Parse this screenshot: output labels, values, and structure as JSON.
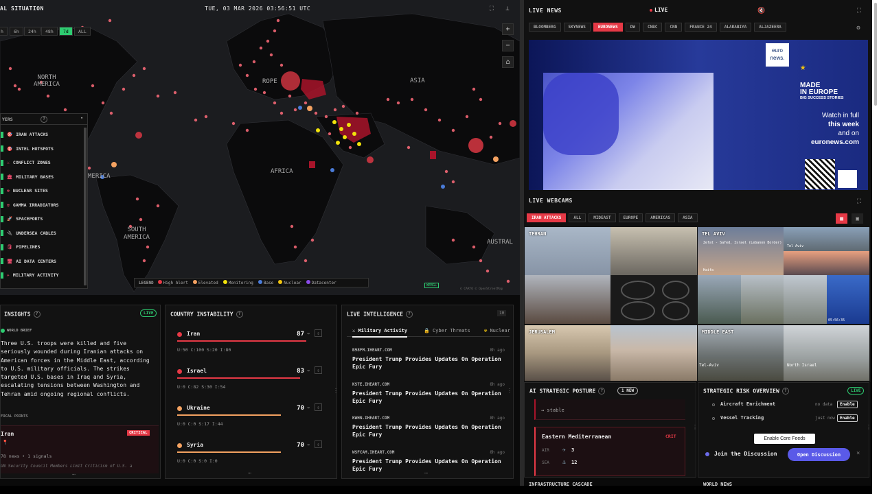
{
  "header": {
    "title": "AL SITUATION",
    "datetime": "TUE, 03 MAR 2026 03:56:51 UTC"
  },
  "time_filters": [
    "h",
    "6h",
    "24h",
    "48h",
    "7d",
    "ALL"
  ],
  "map": {
    "region_labels": [
      "NORTH AMERICA",
      "ROPE",
      "ASIA",
      "MERICA",
      "AFRICA",
      "SOUTH AMERICA",
      "AUSTRAL"
    ],
    "zoom_in": "+",
    "zoom_out": "−",
    "webgl": "WEBGL",
    "attribution": "© CARTO © OpenStreetMap"
  },
  "layers": {
    "title": "YERS",
    "help": "?",
    "items": [
      "IRAN ATTACKS",
      "INTEL HOTSPOTS",
      "CONFLICT ZONES",
      "MILITARY BASES",
      "NUCLEAR SITES",
      "GAMMA IRRADIATORS",
      "SPACEPORTS",
      "UNDERSEA CABLES",
      "PIPELINES",
      "AI DATA CENTERS",
      "MILITARY ACTIVITY"
    ]
  },
  "legend": {
    "title": "LEGEND",
    "items": [
      {
        "label": "High Alert",
        "color": "#e63946"
      },
      {
        "label": "Elevated",
        "color": "#f4a261"
      },
      {
        "label": "Monitoring",
        "color": "#f1e20b"
      },
      {
        "label": "Base",
        "color": "#4a7bd8"
      },
      {
        "label": "Nuclear",
        "color": "#f1c40f"
      },
      {
        "label": "Datacenter",
        "color": "#8a4be8"
      }
    ]
  },
  "insights": {
    "title": "INSIGHTS",
    "live": "LIVE",
    "brief_label": "WORLD BRIEF",
    "brief": "Three U.S. troops were killed and five seriously wounded during Iranian attacks on American forces in the Middle East, according to U.S. military officials. The strikes targeted U.S. bases in Iraq and Syria, escalating tensions between Washington and Tehran amid ongoing regional conflicts.",
    "focal_label": "FOCAL POINTS",
    "focal_name": "Iran",
    "focal_badge": "CRITICAL",
    "focal_meta": "78 news • 1 signals",
    "focal_sub": "UN Security Council Members Limit Criticism of U.S. a"
  },
  "instability": {
    "title": "COUNTRY INSTABILITY",
    "countries": [
      {
        "name": "Iran",
        "score": "87",
        "stats": "U:50  C:100  S:20  I:80",
        "color": "#e63946",
        "level": 0.87
      },
      {
        "name": "Israel",
        "score": "83",
        "stats": "U:0  C:82  S:30  I:54",
        "color": "#e63946",
        "level": 0.83
      },
      {
        "name": "Ukraine",
        "score": "70",
        "stats": "U:0  C:0  S:17  I:44",
        "color": "#f4a261",
        "level": 0.7
      },
      {
        "name": "Syria",
        "score": "70",
        "stats": "U:0  C:0  S:0  I:0",
        "color": "#f4a261",
        "level": 0.7
      }
    ]
  },
  "intel": {
    "title": "LIVE INTELLIGENCE",
    "count": "10",
    "tabs": [
      "Military Activity",
      "Cyber Threats",
      "Nuclear"
    ],
    "items": [
      {
        "src": "B98FM.IHEART.COM",
        "time": "8h ago",
        "headline": "President Trump Provides Updates On Operation Epic Fury"
      },
      {
        "src": "KSTE.IHEART.COM",
        "time": "8h ago",
        "headline": "President Trump Provides Updates On Operation Epic Fury"
      },
      {
        "src": "KWHN.IHEART.COM",
        "time": "8h ago",
        "headline": "President Trump Provides Updates On Operation Epic Fury"
      },
      {
        "src": "WSFCAM.IHEART.COM",
        "time": "8h ago",
        "headline": "President Trump Provides Updates On Operation Epic Fury"
      }
    ]
  },
  "live_news": {
    "title": "LIVE NEWS",
    "live": "LIVE",
    "channels": [
      "BLOOMBERG",
      "SKYNEWS",
      "EURONEWS",
      "DW",
      "CNBC",
      "CNN",
      "FRANCE 24",
      "ALARABIYA",
      "ALJAZEERA"
    ],
    "active": "EURONEWS",
    "video": {
      "logo_top": "euro",
      "logo_bottom": "news.",
      "made": "MADE",
      "in_europe": "IN EUROPE",
      "big": "BIG SUCCESS STORIES",
      "watch1": "Watch in full",
      "watch2": "this week",
      "watch3": "and on",
      "site": "euronews.com"
    }
  },
  "webcams": {
    "title": "LIVE WEBCAMS",
    "tabs": [
      "IRAN ATTACKS",
      "ALL",
      "MIDEAST",
      "EUROPE",
      "AMERICAS",
      "ASIA"
    ],
    "labels": [
      "TEHRAN",
      "TEL AVIV",
      "JERUSALEM",
      "MIDDLE EAST"
    ],
    "overlay_texts": [
      "Zefat - Safed, Israel (Lebanon Border)",
      "Tel Aviv",
      "Haifa",
      "North Israel",
      "Tel-Aviv"
    ],
    "clock": "05:56:35"
  },
  "posture": {
    "title": "AI STRATEGIC POSTURE",
    "badge": "1 NEW",
    "stable": "→ stable",
    "region": "Eastern Mediterranean",
    "crit": "CRIT",
    "air_label": "AIR",
    "air_val": "3",
    "sea_label": "SEA",
    "sea_val": "12"
  },
  "risk": {
    "title": "STRATEGIC RISK OVERVIEW",
    "live": "LIVE",
    "rows": [
      {
        "name": "Aircraft Enrichment",
        "status": "no data",
        "btn": "Enable"
      },
      {
        "name": "Vessel Tracking",
        "status": "just now",
        "btn": "Enable"
      }
    ],
    "core_btn": "Enable Core Feeds",
    "discuss": "Join the Discussion",
    "discuss_btn": "Open Discussion"
  },
  "bottom": {
    "infra": "INFRASTRUCTURE CASCADE",
    "world": "WORLD NEWS"
  }
}
